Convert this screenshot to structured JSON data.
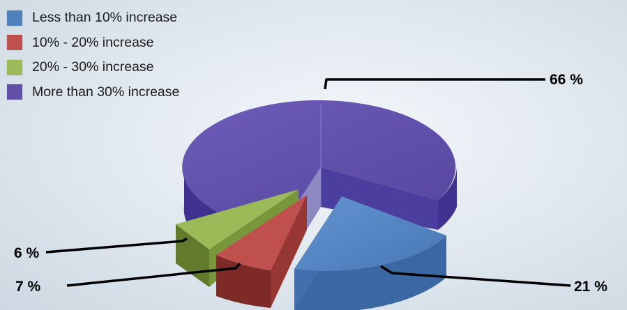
{
  "chart_data": {
    "type": "pie",
    "title": "",
    "slices": [
      {
        "label": "Less than 10% increase",
        "value": 21,
        "value_label": "21 %",
        "color": "#4f81bd"
      },
      {
        "label": "10% - 20% increase",
        "value": 7,
        "value_label": "7 %",
        "color": "#c0504d"
      },
      {
        "label": "20% - 30% increase",
        "value": 6,
        "value_label": "6 %",
        "color": "#9bbb59"
      },
      {
        "label": "More than 30% increase",
        "value": 66,
        "value_label": "66 %",
        "color": "#6250a8"
      }
    ],
    "legend_position": "top-left",
    "style": "3d-exploded"
  }
}
